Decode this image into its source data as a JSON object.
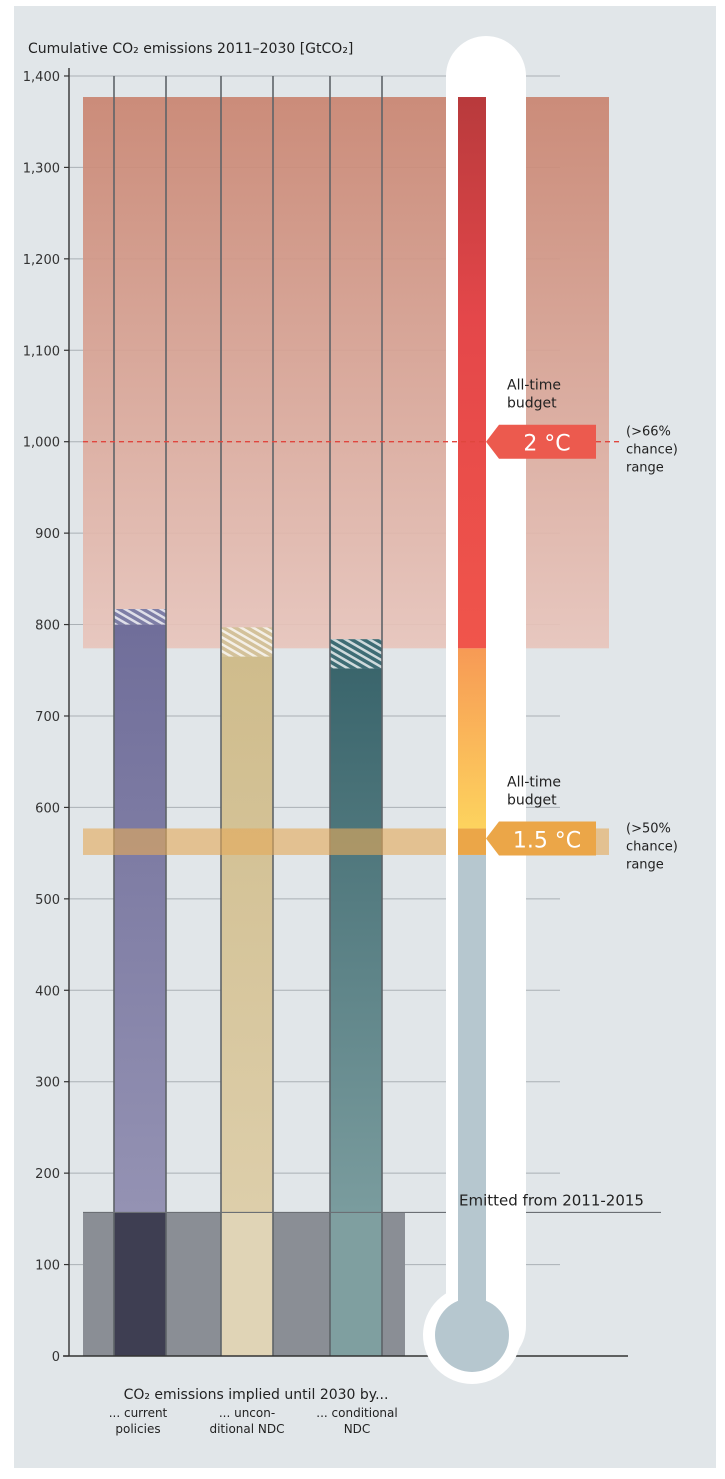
{
  "chart_data": {
    "type": "bar",
    "title": "Cumulative CO₂ emissions 2011–2030 [GtCO₂]",
    "ylim": [
      0,
      1400
    ],
    "yticks": [
      0,
      100,
      200,
      300,
      400,
      500,
      600,
      700,
      800,
      900,
      1000,
      1100,
      1200,
      1300,
      1400
    ],
    "ytick_labels": [
      "0",
      "100",
      "200",
      "300",
      "400",
      "500",
      "600",
      "700",
      "800",
      "900",
      "1,000",
      "1,100",
      "1,200",
      "1,300",
      "1,400"
    ],
    "xlabel": "CO₂ emissions implied until 2030 by...",
    "grid": true,
    "bars": [
      {
        "label_lines": [
          "... current",
          "policies"
        ],
        "value_low": 800,
        "value_high": 817,
        "color": "#7e7ea6"
      },
      {
        "label_lines": [
          "... uncon-",
          "ditional NDC"
        ],
        "value_low": 765,
        "value_high": 797,
        "color": "#d3c19a"
      },
      {
        "label_lines": [
          "... conditional",
          "NDC"
        ],
        "value_low": 752,
        "value_high": 784,
        "color": "#3e6c74"
      }
    ],
    "emitted_2011_2015": {
      "value": 157,
      "label": "Emitted from 2011-2015"
    },
    "budgets": [
      {
        "temperature": "2 °C",
        "central": 1000,
        "range": [
          774,
          1377
        ],
        "label_lines": [
          "All-time",
          "budget"
        ],
        "chance_lines": [
          "(>66%",
          "chance)",
          "range"
        ],
        "color": "#ec5a4e"
      },
      {
        "temperature": "1.5 °C",
        "central": 575,
        "range": [
          548,
          577
        ],
        "label_lines": [
          "All-time",
          "budget"
        ],
        "chance_lines": [
          "(>50%",
          "chance)",
          "range"
        ],
        "color": "#eba648"
      }
    ],
    "thermometer_top": 1377
  }
}
